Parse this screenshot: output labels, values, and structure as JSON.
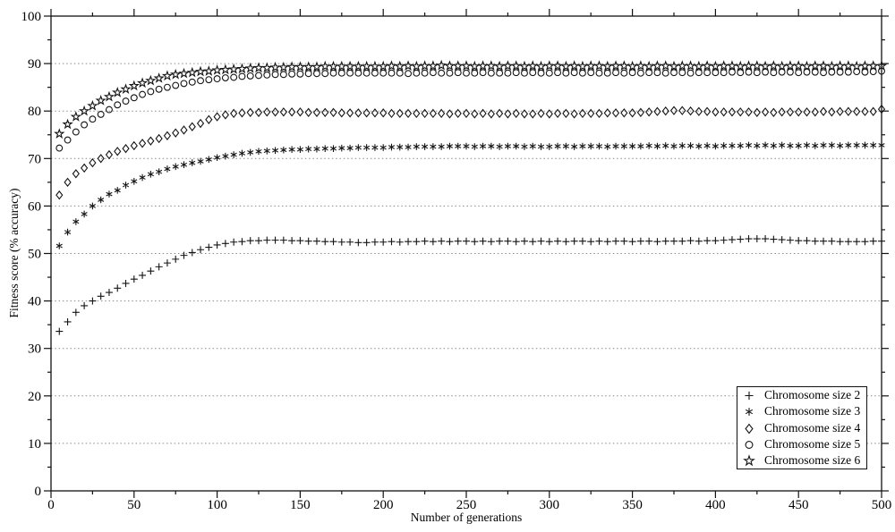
{
  "axes": {
    "x_title": "Number of generations",
    "y_title": "Fitness score (% accuracy)"
  },
  "colors": {
    "foreground": "#000000",
    "background": "#ffffff",
    "grid": "#8a8a8a",
    "marker": "#141414"
  },
  "chart_data": {
    "type": "scatter",
    "title": "",
    "xlabel": "Number of generations",
    "ylabel": "Fitness score (% accuracy)",
    "xlim": [
      0,
      500
    ],
    "ylim": [
      0,
      100
    ],
    "x_ticks_major": [
      0,
      50,
      100,
      150,
      200,
      250,
      300,
      350,
      400,
      450,
      500
    ],
    "x_minor_step": 25,
    "y_ticks_major": [
      0,
      10,
      20,
      30,
      40,
      50,
      60,
      70,
      80,
      90,
      100
    ],
    "y_minor_step": 5,
    "grid": "horizontal-dotted",
    "legend_position": "bottom-right",
    "x": [
      5,
      10,
      15,
      20,
      25,
      30,
      35,
      40,
      45,
      50,
      55,
      60,
      65,
      70,
      75,
      80,
      85,
      90,
      95,
      100,
      105,
      110,
      115,
      120,
      125,
      130,
      135,
      140,
      145,
      150,
      155,
      160,
      165,
      170,
      175,
      180,
      185,
      190,
      195,
      200,
      205,
      210,
      215,
      220,
      225,
      230,
      235,
      240,
      245,
      250,
      255,
      260,
      265,
      270,
      275,
      280,
      285,
      290,
      295,
      300,
      305,
      310,
      315,
      320,
      325,
      330,
      335,
      340,
      345,
      350,
      355,
      360,
      365,
      370,
      375,
      380,
      385,
      390,
      395,
      400,
      405,
      410,
      415,
      420,
      425,
      430,
      435,
      440,
      445,
      450,
      455,
      460,
      465,
      470,
      475,
      480,
      485,
      490,
      495,
      500
    ],
    "series": [
      {
        "name": "Chromosome size 2",
        "marker": "plus",
        "values": [
          33.6,
          35.6,
          37.6,
          39,
          40,
          41,
          41.8,
          42.7,
          43.7,
          44.6,
          45.4,
          46.3,
          47.2,
          48,
          48.8,
          49.6,
          50.2,
          50.8,
          51.3,
          51.8,
          52.1,
          52.4,
          52.5,
          52.7,
          52.7,
          52.8,
          52.8,
          52.8,
          52.7,
          52.7,
          52.6,
          52.6,
          52.5,
          52.5,
          52.4,
          52.4,
          52.3,
          52.3,
          52.4,
          52.4,
          52.5,
          52.4,
          52.5,
          52.5,
          52.6,
          52.5,
          52.6,
          52.5,
          52.6,
          52.6,
          52.5,
          52.6,
          52.5,
          52.6,
          52.6,
          52.5,
          52.6,
          52.5,
          52.6,
          52.5,
          52.6,
          52.5,
          52.6,
          52.6,
          52.5,
          52.6,
          52.5,
          52.6,
          52.6,
          52.5,
          52.6,
          52.6,
          52.5,
          52.6,
          52.6,
          52.6,
          52.7,
          52.6,
          52.7,
          52.7,
          52.8,
          52.9,
          53,
          53.1,
          53.1,
          53.1,
          53,
          52.9,
          52.8,
          52.7,
          52.7,
          52.6,
          52.6,
          52.6,
          52.5,
          52.5,
          52.5,
          52.5,
          52.6,
          52.6
        ]
      },
      {
        "name": "Chromosome size 3",
        "marker": "asterisk",
        "values": [
          51.6,
          54.5,
          56.7,
          58.3,
          60,
          61.3,
          62.5,
          63.3,
          64.4,
          65.2,
          66,
          66.7,
          67.2,
          67.8,
          68.3,
          68.7,
          69.1,
          69.4,
          69.8,
          70.2,
          70.5,
          70.8,
          71.1,
          71.3,
          71.5,
          71.6,
          71.7,
          71.8,
          71.9,
          71.9,
          72,
          72,
          72.1,
          72.1,
          72.2,
          72.2,
          72.3,
          72.3,
          72.3,
          72.3,
          72.4,
          72.4,
          72.4,
          72.5,
          72.5,
          72.5,
          72.5,
          72.6,
          72.6,
          72.6,
          72.5,
          72.6,
          72.6,
          72.5,
          72.6,
          72.6,
          72.5,
          72.6,
          72.5,
          72.5,
          72.6,
          72.6,
          72.5,
          72.6,
          72.6,
          72.6,
          72.5,
          72.6,
          72.6,
          72.6,
          72.6,
          72.7,
          72.6,
          72.7,
          72.6,
          72.7,
          72.7,
          72.6,
          72.7,
          72.6,
          72.7,
          72.7,
          72.7,
          72.8,
          72.7,
          72.8,
          72.7,
          72.8,
          72.7,
          72.7,
          72.8,
          72.7,
          72.8,
          72.8,
          72.7,
          72.8,
          72.8,
          72.8,
          72.8,
          72.8
        ]
      },
      {
        "name": "Chromosome size 4",
        "marker": "diamond",
        "values": [
          62.3,
          65,
          66.8,
          68,
          69.1,
          70,
          70.8,
          71.5,
          72.1,
          72.7,
          73.2,
          73.7,
          74.2,
          74.8,
          75.4,
          76,
          76.7,
          77.4,
          78.2,
          78.8,
          79.2,
          79.5,
          79.6,
          79.7,
          79.7,
          79.8,
          79.8,
          79.8,
          79.8,
          79.8,
          79.7,
          79.7,
          79.7,
          79.7,
          79.6,
          79.6,
          79.6,
          79.6,
          79.6,
          79.6,
          79.5,
          79.5,
          79.5,
          79.5,
          79.5,
          79.5,
          79.5,
          79.4,
          79.5,
          79.5,
          79.4,
          79.5,
          79.4,
          79.5,
          79.4,
          79.5,
          79.4,
          79.4,
          79.5,
          79.4,
          79.5,
          79.5,
          79.4,
          79.5,
          79.5,
          79.5,
          79.6,
          79.6,
          79.6,
          79.6,
          79.7,
          79.8,
          79.9,
          80,
          80.1,
          80.1,
          80,
          79.9,
          79.9,
          79.8,
          79.8,
          79.8,
          79.8,
          79.8,
          79.7,
          79.8,
          79.7,
          79.8,
          79.8,
          79.8,
          79.8,
          79.8,
          79.9,
          79.8,
          79.9,
          79.9,
          79.9,
          79.9,
          79.9,
          80.4
        ]
      },
      {
        "name": "Chromosome size 5",
        "marker": "circle",
        "values": [
          72.2,
          73.9,
          75.6,
          77.1,
          78.3,
          79.3,
          80.3,
          81.3,
          82.1,
          82.8,
          83.5,
          84.1,
          84.6,
          85,
          85.4,
          85.8,
          86.1,
          86.4,
          86.6,
          86.8,
          87,
          87.1,
          87.3,
          87.4,
          87.5,
          87.6,
          87.7,
          87.7,
          87.8,
          87.8,
          87.9,
          87.9,
          87.9,
          88,
          88,
          88,
          88,
          88,
          88,
          88,
          88,
          88,
          87.9,
          88,
          88,
          88.1,
          88,
          88,
          88.1,
          88,
          88,
          88.1,
          88,
          88,
          88,
          88.1,
          88,
          88.1,
          88,
          88,
          88.1,
          88,
          88.1,
          88,
          88.1,
          88,
          88,
          88.1,
          88,
          88.1,
          88,
          88.1,
          88.1,
          88,
          88.1,
          88.1,
          88,
          88.1,
          88.1,
          88.1,
          88.1,
          88.2,
          88.1,
          88.2,
          88.1,
          88.2,
          88.1,
          88.2,
          88.2,
          88.1,
          88.2,
          88.2,
          88.1,
          88.2,
          88.2,
          88.2,
          88.3,
          88.2,
          88.3,
          88.4
        ]
      },
      {
        "name": "Chromosome size 6",
        "marker": "star",
        "values": [
          75.2,
          77.2,
          78.8,
          80,
          81.1,
          82.2,
          83,
          83.9,
          84.6,
          85.3,
          85.9,
          86.4,
          86.9,
          87.4,
          87.7,
          87.9,
          88.1,
          88.3,
          88.4,
          88.6,
          88.7,
          88.8,
          88.9,
          89,
          89.1,
          89.1,
          89.2,
          89.2,
          89.3,
          89.3,
          89.3,
          89.3,
          89.4,
          89.4,
          89.4,
          89.4,
          89.4,
          89.4,
          89.4,
          89.4,
          89.5,
          89.4,
          89.5,
          89.4,
          89.5,
          89.5,
          89.6,
          89.5,
          89.5,
          89.5,
          89.4,
          89.5,
          89.5,
          89.4,
          89.5,
          89.5,
          89.4,
          89.5,
          89.4,
          89.5,
          89.5,
          89.4,
          89.5,
          89.4,
          89.5,
          89.5,
          89.4,
          89.5,
          89.5,
          89.4,
          89.5,
          89.4,
          89.5,
          89.5,
          89.4,
          89.5,
          89.5,
          89.4,
          89.5,
          89.4,
          89.5,
          89.5,
          89.4,
          89.5,
          89.5,
          89.4,
          89.5,
          89.4,
          89.5,
          89.5,
          89.4,
          89.5,
          89.5,
          89.4,
          89.5,
          89.5,
          89.4,
          89.5,
          89.5,
          89.5
        ]
      }
    ]
  }
}
